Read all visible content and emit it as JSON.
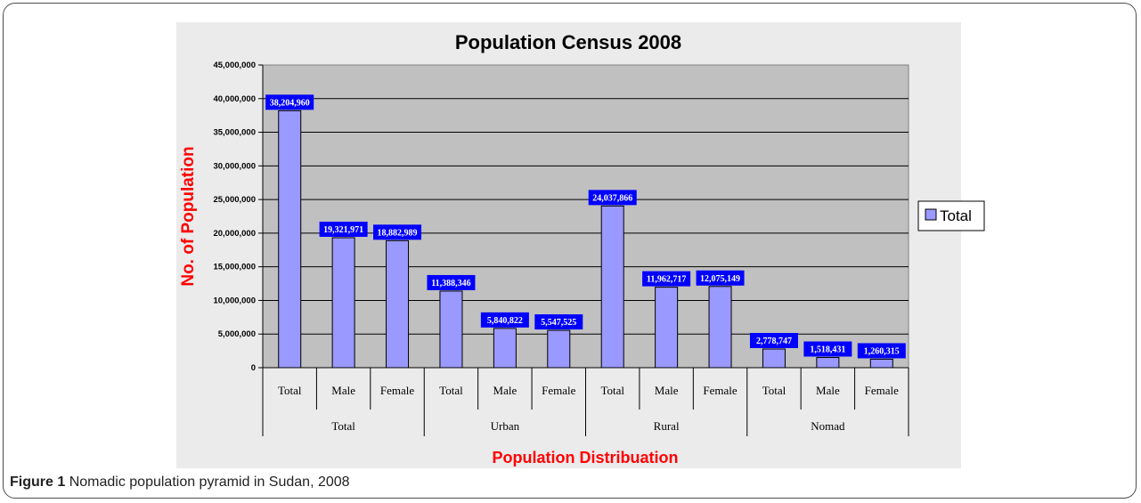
{
  "caption": {
    "label": "Figure 1",
    "text": "Nomadic population pyramid in Sudan, 2008"
  },
  "colors": {
    "bar_fill": "#9999ff",
    "plot_bg": "#c0c0c0",
    "panel_bg": "#ebebeb",
    "label_box": "#0000ff",
    "axis_title": "#ff0000"
  },
  "chart_data": {
    "type": "bar",
    "title": "Population Census 2008",
    "xlabel": "Population Distribuation",
    "ylabel": "No. of Population",
    "ylim": [
      0,
      45000000
    ],
    "yticks": [
      0,
      5000000,
      10000000,
      15000000,
      20000000,
      25000000,
      30000000,
      35000000,
      40000000,
      45000000
    ],
    "ytick_labels": [
      "0",
      "5,000,000",
      "10,000,000",
      "15,000,000",
      "20,000,000",
      "25,000,000",
      "30,000,000",
      "35,000,000",
      "40,000,000",
      "45,000,000"
    ],
    "grid": true,
    "legend": "right",
    "groups": [
      "Total",
      "Urban",
      "Rural",
      "Nomad"
    ],
    "categories": [
      "Total",
      "Male",
      "Female",
      "Total",
      "Male",
      "Female",
      "Total",
      "Male",
      "Female",
      "Total",
      "Male",
      "Female"
    ],
    "series": [
      {
        "name": "Total",
        "values": [
          38204960,
          19321971,
          18882989,
          11388346,
          5840822,
          5547525,
          24037866,
          11962717,
          12075149,
          2778747,
          1518431,
          1260315
        ],
        "labels": [
          "38,204,960",
          "19,321,971",
          "18,882,989",
          "11,388,346",
          "5,840,822",
          "5,547,525",
          "24,037,866",
          "11,962,717",
          "12,075,149",
          "2,778,747",
          "1,518,431",
          "1,260,315"
        ]
      }
    ]
  }
}
